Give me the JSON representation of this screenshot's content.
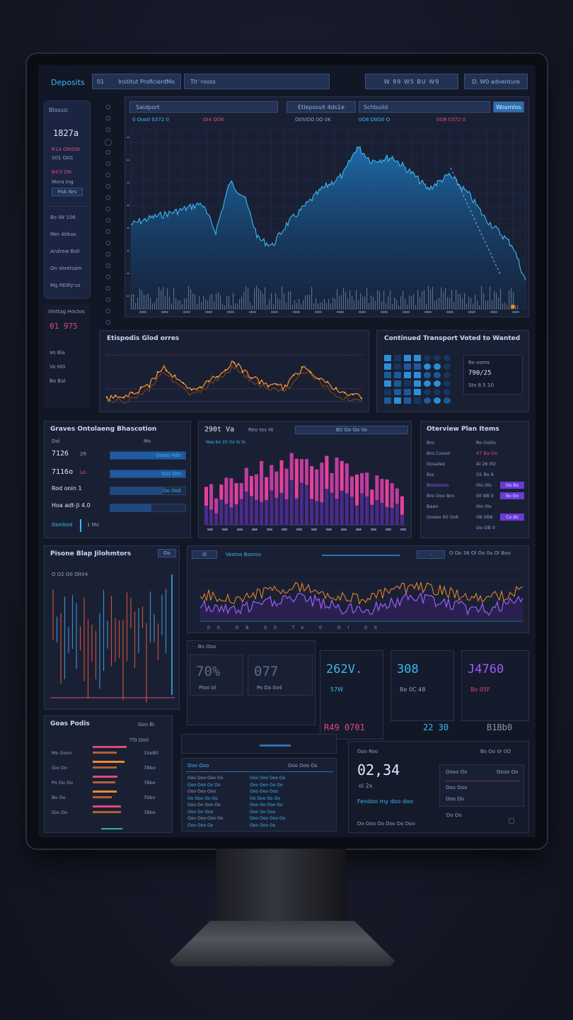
{
  "app": {
    "title": "Deposits",
    "tab_main": "Institut Proficient",
    "tab_small_1": "01",
    "tab_small_2": "Mo",
    "search_placeholder": "Th' rooss",
    "top_icons_label": "W 99 W5 BU W9",
    "profile_label": "D. W0 adventure"
  },
  "left_sidebar": {
    "card_title": "Blossic",
    "card_value": "1827a",
    "card_line1": "R14 ORISW",
    "card_line2": "S01 OAS",
    "card_line3": "B4'll ON",
    "card_line4": "Mora Ing",
    "card_button": "Fisk Nrs",
    "items": [
      "Bo IW 106",
      "Mer Atlkos",
      "Andrew Boll",
      "On Vorelsam",
      "Mg RE9ly'us"
    ],
    "lower_label": "Vinttag Hoctos",
    "lower_value": "01 975",
    "lower_items": [
      "Vo Bla",
      "Vo Hl0",
      "Bo Bal"
    ]
  },
  "main_chart": {
    "filter_1": "Saidport",
    "filter_2": "Etlepsosit 4ds1e",
    "filter_3": "Schbuild",
    "filter_button": "Wosmlos",
    "stat_1": "0 Ooo0 0372 0",
    "stat_2": "OI4 OO6",
    "stat_3": "O0SIOO 0O 0K",
    "stat_4": "0O8 O0O0 O",
    "stat_5": "0O8 0372 0",
    "colors": {
      "area": "#1f6fb0",
      "line": "#3fc4ff",
      "volume": "#8a99b8"
    }
  },
  "orange_chart": {
    "title": "Etispodis Glod orres",
    "colors": {
      "line": "#f08a2a",
      "glow": "#ffb040"
    }
  },
  "heatmap_panel": {
    "title": "Continued Transport Voted to Wanted",
    "value_1": "Ro ooms",
    "value_2": "790/25",
    "value_3": "Sto 8.5 10"
  },
  "gauges_panel": {
    "title": "Graves Ontolaeng Bhascotion",
    "head_1": "Dol",
    "head_2": "Mo",
    "rows": [
      {
        "label": "7126",
        "sub": "2R",
        "button": "Ooslo Hdo"
      },
      {
        "label": "7116o",
        "sub": "Lo",
        "button": "Oos Om"
      },
      {
        "label": "Rod onin 1",
        "sub": "",
        "button": "Oo Ooll"
      },
      {
        "label": "Hoa adt-Ji 4.0",
        "sub": "",
        "button": ""
      }
    ],
    "footer": "Osmbod",
    "footer_value": "1 Mo"
  },
  "bar_chart": {
    "header_value": "290t Va",
    "header_label": "Reo tes Hi",
    "header_right": "B0 Oo Oo Vo",
    "legend": "Nee bo 20 Oo lo to"
  },
  "overview_panel": {
    "title": "Oterview Plan Items",
    "rows": [
      {
        "label": "Bro",
        "value": "Ro Ootlo",
        "badge": ""
      },
      {
        "label": "Bro Coosd",
        "value": "47 Ba Oo",
        "badge": ""
      },
      {
        "label": "Gosaleo",
        "value": "Al 26 0O",
        "badge": ""
      },
      {
        "label": "Bia",
        "value": "02 Ro 6",
        "badge": ""
      },
      {
        "label": "Btosrooro",
        "value": "0lo 0lo",
        "badge": "Oo Bo"
      },
      {
        "label": "Bro Ooo Bro",
        "value": "0ll BB 0",
        "badge": "Bo Oo"
      },
      {
        "label": "Baen",
        "value": "0lo 0lo",
        "badge": ""
      },
      {
        "label": "Goseo 00 Ook",
        "value": "0B 0B8",
        "badge": "Co do"
      },
      {
        "label": "",
        "value": "Oo OB 0",
        "badge": ""
      }
    ]
  },
  "candle_panel": {
    "title": "Pisone Blap Jilohmtors",
    "sub": "O O2 O0 Olt04",
    "badge": "Oo"
  },
  "purple_chart": {
    "header_left": "Iil",
    "header_mid": "Vostoo Bosrou",
    "header_right": "O Oo 36 Ol Oo 0a Ol Boo",
    "stats": "00 OB 00 To 0 Ol 00",
    "colors": {
      "line_a": "#9b5cff",
      "line_b": "#f08a2a"
    }
  },
  "kpis": [
    {
      "value": "70%",
      "sub": "Ptoo bl",
      "color": "#5d6a88"
    },
    {
      "value": "077",
      "sub": "Po Da 0o4",
      "color": "#5d6a88"
    },
    {
      "value": "262V.",
      "sub": "57W",
      "color": "#39b9f2"
    },
    {
      "value": "308",
      "sub": "Be 0C 48",
      "color": "#39b9f2"
    },
    {
      "value": "J4760",
      "sub": "Bo 05F",
      "color": "#9b5cff"
    }
  ],
  "kpi_row_labels": {
    "left": "R49 0701",
    "mid": "22 30",
    "right": "B1Bb0"
  },
  "bottom_left": {
    "title": "Goas Podis",
    "title_right": "Goo Bi",
    "head": "Tl0 Oo0",
    "rows": [
      {
        "label": "Mo Goun",
        "value": "1SeB0"
      },
      {
        "label": "Gio Oo",
        "value": "7Bbo"
      },
      {
        "label": "Po Oo Oo",
        "value": "7Bbo"
      },
      {
        "label": "Bo Oo",
        "value": "7bbo"
      },
      {
        "label": "Gio Oo",
        "value": "7Bbo"
      }
    ]
  },
  "bottom_mid": {
    "header": "Ooo Ooo",
    "title": "Doo Ooo Os",
    "rows": [
      "Ooo Ooo Ooo Oo",
      "Ooo Ooo Oo Oo",
      "Ooo Ooo Ooo",
      "Oo Ooo Oo Oo",
      "Ooo Oo Ooo Oo",
      "Ooo Oo Ooo",
      "Ooo Ooo Ooo Oo",
      "Ooo Ooo Oo"
    ]
  },
  "bottom_right": {
    "top_left": "Goo Roo",
    "top_right": "Bo Oo 0r 0O",
    "value": "02,34",
    "value_sub": "ol 2x",
    "link": "Fendoo my doo doo",
    "footer": "Do Ooo Oo Dos Oo Doo",
    "side_rows": [
      "Oooo Oo",
      "Ooo Ooo",
      "Ooo Oo"
    ],
    "side_footer": "Do Oo"
  }
}
